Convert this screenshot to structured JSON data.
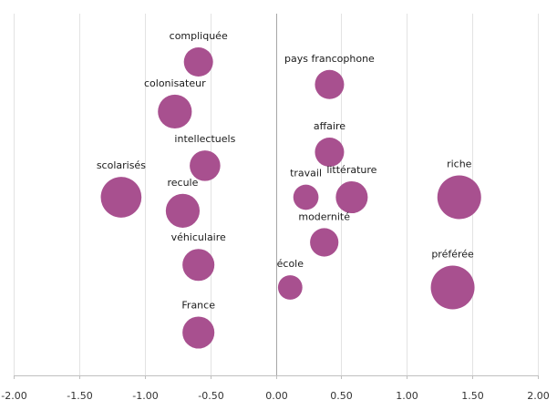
{
  "chart_data": {
    "type": "scatter",
    "title": "",
    "xlabel": "",
    "ylabel": "",
    "xlim": [
      -2.0,
      2.0
    ],
    "ylim": [
      0,
      8
    ],
    "x_ticks": [
      -2.0,
      -1.5,
      -1.0,
      -0.5,
      0.0,
      0.5,
      1.0,
      1.5,
      2.0
    ],
    "x_tick_labels": [
      "-2.00",
      "-1.50",
      "-1.00",
      "-0.50",
      "0.00",
      "0.50",
      "1.00",
      "1.50",
      "2.00"
    ],
    "grid": "vertical",
    "legend": "none",
    "bubble_color": "#A8508F",
    "points": [
      {
        "label": "compliquée",
        "x": -0.59,
        "y": 7.0,
        "size": 1.0
      },
      {
        "label": "pays francophone",
        "x": 0.41,
        "y": 6.5,
        "size": 1.0
      },
      {
        "label": "colonisateur",
        "x": -0.77,
        "y": 5.9,
        "size": 1.35
      },
      {
        "label": "affaire",
        "x": 0.41,
        "y": 5.0,
        "size": 1.0
      },
      {
        "label": "intellectuels",
        "x": -0.54,
        "y": 4.7,
        "size": 1.1
      },
      {
        "label": "scolarisés",
        "x": -1.18,
        "y": 4.0,
        "size": 1.95
      },
      {
        "label": "travail",
        "x": 0.23,
        "y": 4.0,
        "size": 0.75
      },
      {
        "label": "littérature",
        "x": 0.58,
        "y": 4.0,
        "size": 1.2
      },
      {
        "label": "riche",
        "x": 1.4,
        "y": 4.0,
        "size": 2.25
      },
      {
        "label": "recule",
        "x": -0.71,
        "y": 3.7,
        "size": 1.35
      },
      {
        "label": "modernité",
        "x": 0.37,
        "y": 3.0,
        "size": 0.95
      },
      {
        "label": "véhiculaire",
        "x": -0.59,
        "y": 2.5,
        "size": 1.2
      },
      {
        "label": "école",
        "x": 0.11,
        "y": 2.0,
        "size": 0.7
      },
      {
        "label": "préférée",
        "x": 1.35,
        "y": 2.0,
        "size": 2.25
      },
      {
        "label": "France",
        "x": -0.59,
        "y": 1.0,
        "size": 1.2
      }
    ]
  }
}
